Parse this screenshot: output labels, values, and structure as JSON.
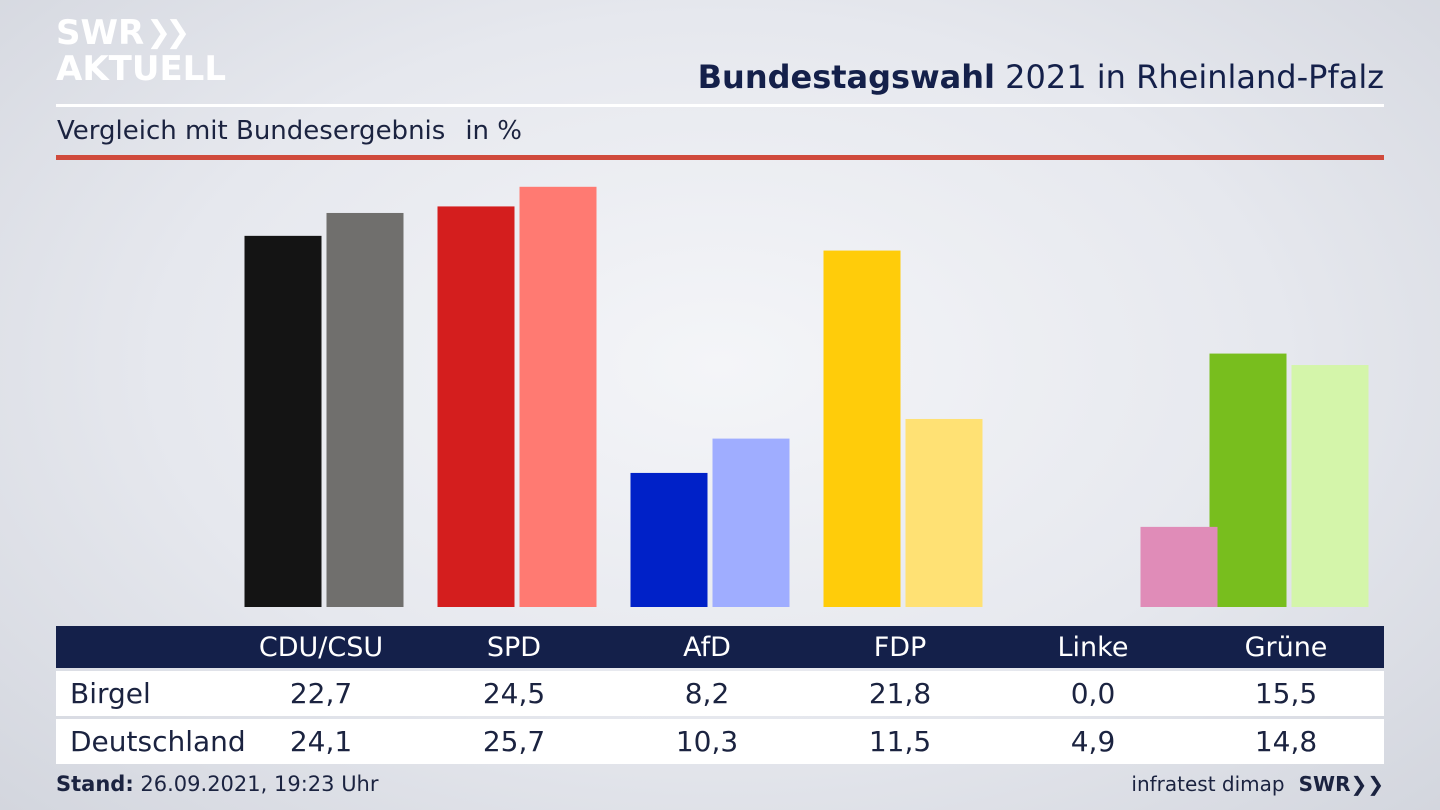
{
  "logo": {
    "line1": "SWR",
    "line2": "AKTUELL"
  },
  "header": {
    "title_bold": "Bundestagswahl",
    "title_rest": "2021 in Rheinland-Pfalz"
  },
  "subtitle": {
    "text": "Vergleich mit Bundesergebnis",
    "unit": "in %"
  },
  "footer": {
    "stand_label": "Stand:",
    "stand_value": "26.09.2021, 19:23 Uhr",
    "source": "infratest dimap",
    "brand": "SWR"
  },
  "chart_data": {
    "type": "bar",
    "title": "Bundestagswahl 2021 in Rheinland-Pfalz",
    "subtitle": "Vergleich mit Bundesergebnis",
    "unit": "in %",
    "categories": [
      "CDU/CSU",
      "SPD",
      "AfD",
      "FDP",
      "Linke",
      "Grüne"
    ],
    "series": [
      {
        "name": "Birgel",
        "values": [
          22.7,
          24.5,
          8.2,
          21.8,
          0.0,
          15.5
        ],
        "colors": [
          "#141414",
          "#d41e1e",
          "#0021c8",
          "#ffcc0a",
          "#c83c82",
          "#78be1e"
        ]
      },
      {
        "name": "Deutschland",
        "values": [
          24.1,
          25.7,
          10.3,
          11.5,
          4.9,
          14.8
        ],
        "colors": [
          "#706f6d",
          "#ff7a72",
          "#9fadff",
          "#ffe174",
          "#e08cb8",
          "#d4f5aa"
        ]
      }
    ],
    "value_labels": [
      [
        "22,7",
        "24,5",
        "8,2",
        "21,8",
        "0,0",
        "15,5"
      ],
      [
        "24,1",
        "25,7",
        "10,3",
        "11,5",
        "4,9",
        "14,8"
      ]
    ],
    "grid": false,
    "legend": "table-below"
  }
}
